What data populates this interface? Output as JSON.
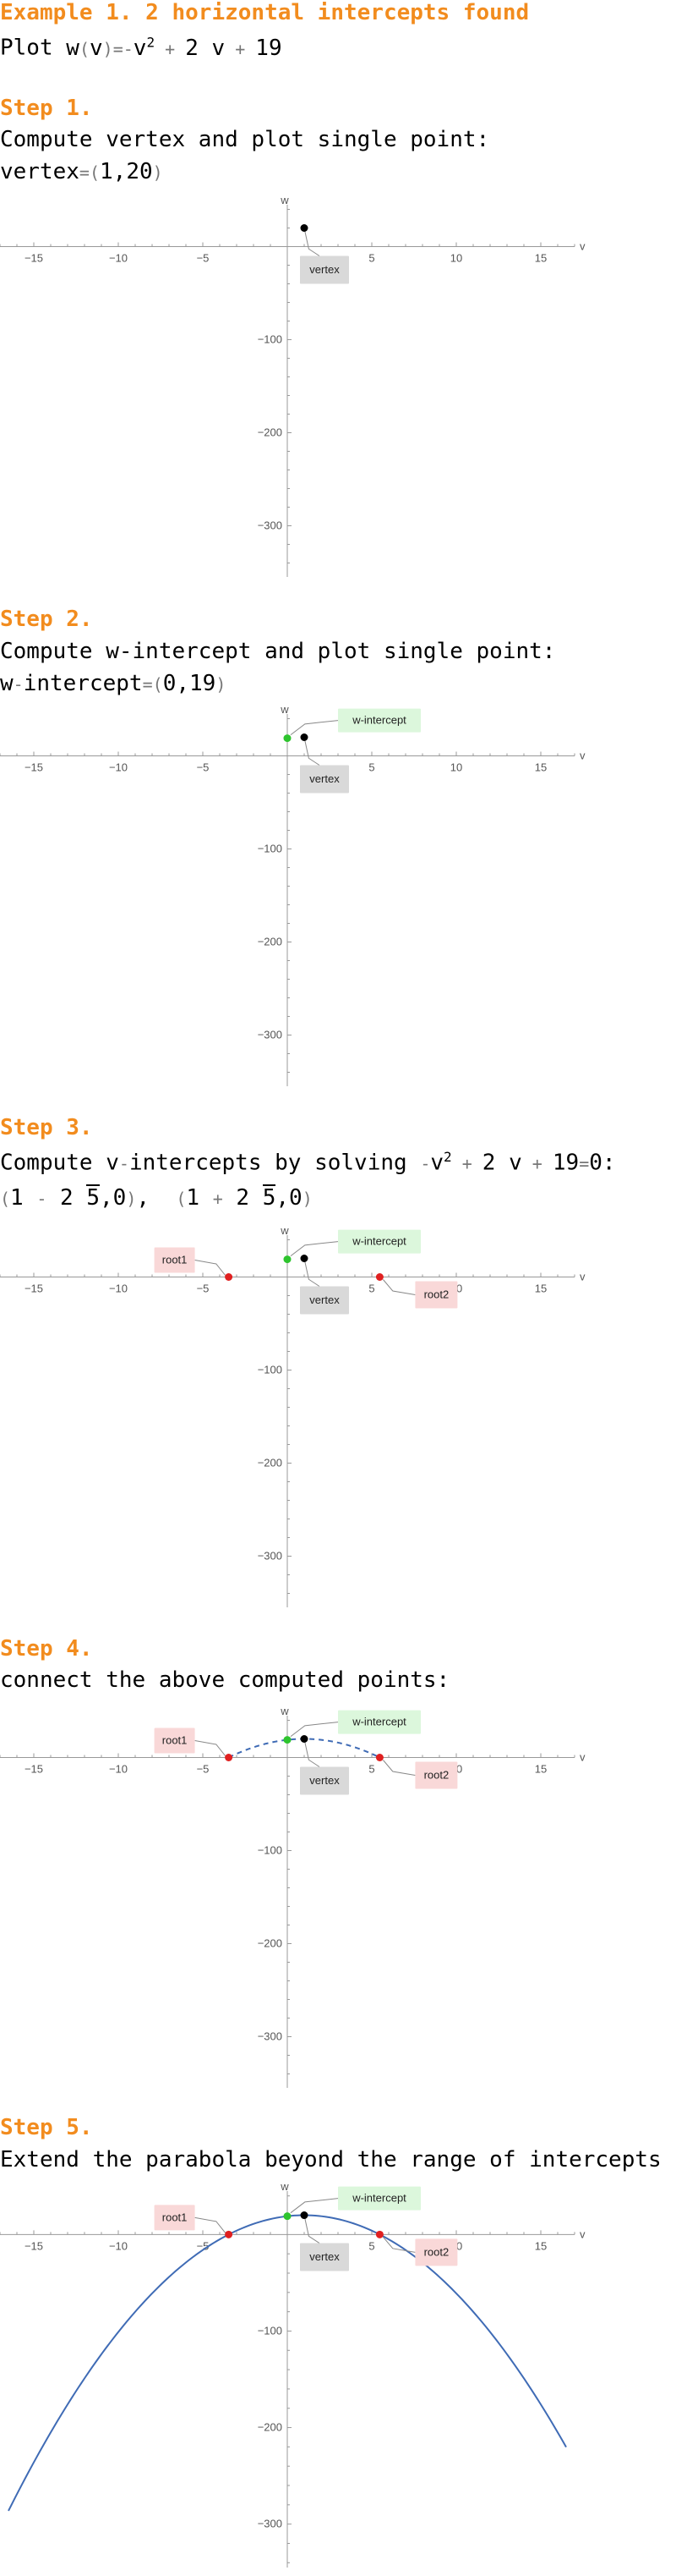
{
  "title": "Example 1. 2 horizontal intercepts found",
  "function_line": {
    "prefix": "Plot ",
    "expr": "w(v)=-v2+2v+19"
  },
  "steps": [
    {
      "label": "Step 1.",
      "text": "Compute vertex and plot single point:",
      "result": "vertex=(1,20)"
    },
    {
      "label": "Step 2.",
      "text": "Compute w-intercept and plot single point:",
      "result": "w-intercept=(0,19)"
    },
    {
      "label": "Step 3.",
      "text_prefix": "Compute v-intercepts by solving ",
      "text_suffix": ":",
      "equation": "-v2+2v+19=0",
      "root1": "(1-2√5,0)",
      "root2": "(1+2√5,0)"
    },
    {
      "label": "Step 4.",
      "text": "connect the above computed points:"
    },
    {
      "label": "Step 5.",
      "text": "Extend the parabola beyond the range of intercepts"
    }
  ],
  "colors": {
    "accent": "#f28c1e",
    "curve": "#3f6bb5",
    "vertex": "#000000",
    "w_intercept": "#2ec42e",
    "root": "#e02020",
    "vertex_label_bg": "#d9d9d9",
    "w_label_bg": "#dcf7dc",
    "root_label_bg": "#f9d8d8"
  },
  "chart_data": [
    {
      "type": "scatter",
      "step": 1,
      "xlabel": "v",
      "ylabel": "w",
      "xticks": [
        -15,
        -10,
        -5,
        5,
        10,
        15
      ],
      "yticks": [
        -100,
        -200,
        -300
      ],
      "xlim": [
        -17,
        17
      ],
      "ylim": [
        -355,
        45
      ],
      "points": [
        {
          "label": "vertex",
          "x": 1,
          "y": 20
        }
      ],
      "curve": "none"
    },
    {
      "type": "scatter",
      "step": 2,
      "xlabel": "v",
      "ylabel": "w",
      "xticks": [
        -15,
        -10,
        -5,
        5,
        10,
        15
      ],
      "yticks": [
        -100,
        -200,
        -300
      ],
      "xlim": [
        -17,
        17
      ],
      "ylim": [
        -355,
        45
      ],
      "points": [
        {
          "label": "w-intercept",
          "x": 0,
          "y": 19
        },
        {
          "label": "vertex",
          "x": 1,
          "y": 20
        }
      ],
      "curve": "none"
    },
    {
      "type": "scatter",
      "step": 3,
      "xlabel": "v",
      "ylabel": "w",
      "xticks": [
        -15,
        -10,
        -5,
        5,
        10,
        15
      ],
      "yticks": [
        -100,
        -200,
        -300
      ],
      "xlim": [
        -17,
        17
      ],
      "ylim": [
        -355,
        45
      ],
      "points": [
        {
          "label": "root1",
          "x": -3.47,
          "y": 0
        },
        {
          "label": "w-intercept",
          "x": 0,
          "y": 19
        },
        {
          "label": "vertex",
          "x": 1,
          "y": 20
        },
        {
          "label": "root2",
          "x": 5.47,
          "y": 0
        }
      ],
      "curve": "none"
    },
    {
      "type": "line",
      "step": 4,
      "xlabel": "v",
      "ylabel": "w",
      "xticks": [
        -15,
        -10,
        -5,
        5,
        10,
        15
      ],
      "yticks": [
        -100,
        -200,
        -300
      ],
      "xlim": [
        -17,
        17
      ],
      "ylim": [
        -355,
        45
      ],
      "points": [
        {
          "label": "root1",
          "x": -3.47,
          "y": 0
        },
        {
          "label": "w-intercept",
          "x": 0,
          "y": 19
        },
        {
          "label": "vertex",
          "x": 1,
          "y": 20
        },
        {
          "label": "root2",
          "x": 5.47,
          "y": 0
        }
      ],
      "curve": "dashed",
      "curve_domain": [
        -3.47,
        5.47
      ],
      "function": {
        "a": -1,
        "b": 2,
        "c": 19
      }
    },
    {
      "type": "line",
      "step": 5,
      "xlabel": "v",
      "ylabel": "w",
      "xticks": [
        -15,
        -10,
        -5,
        5,
        10,
        15
      ],
      "yticks": [
        -100,
        -200,
        -300
      ],
      "xlim": [
        -17,
        17
      ],
      "ylim": [
        -345,
        45
      ],
      "points": [
        {
          "label": "root1",
          "x": -3.47,
          "y": 0
        },
        {
          "label": "w-intercept",
          "x": 0,
          "y": 19
        },
        {
          "label": "vertex",
          "x": 1,
          "y": 20
        },
        {
          "label": "root2",
          "x": 5.47,
          "y": 0
        }
      ],
      "curve": "solid",
      "curve_domain": [
        -16.5,
        16.5
      ],
      "function": {
        "a": -1,
        "b": 2,
        "c": 19
      }
    }
  ]
}
